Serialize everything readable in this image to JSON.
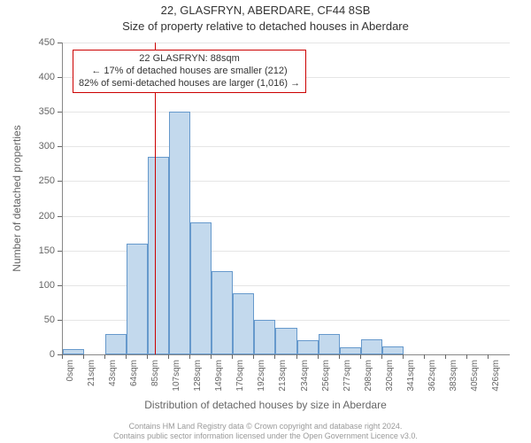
{
  "title": "22, GLASFRYN, ABERDARE, CF44 8SB",
  "subtitle": "Size of property relative to detached houses in Aberdare",
  "chart": {
    "type": "histogram",
    "ylabel": "Number of detached properties",
    "xlabel": "Distribution of detached houses by size in Aberdare",
    "ylim_max": 450,
    "ytick_step": 50,
    "grid_color": "#e5e5e5",
    "background_color": "#ffffff",
    "bar_fill": "#c3d9ed",
    "bar_border": "#6699cc",
    "x_tick_labels": [
      "0sqm",
      "21sqm",
      "43sqm",
      "64sqm",
      "85sqm",
      "107sqm",
      "128sqm",
      "149sqm",
      "170sqm",
      "192sqm",
      "213sqm",
      "234sqm",
      "256sqm",
      "277sqm",
      "298sqm",
      "320sqm",
      "341sqm",
      "362sqm",
      "383sqm",
      "405sqm",
      "426sqm"
    ],
    "values": [
      8,
      0,
      30,
      160,
      285,
      350,
      190,
      120,
      88,
      50,
      38,
      20,
      30,
      10,
      22,
      12,
      0,
      0,
      0,
      0,
      0
    ],
    "indicator": {
      "value_sqm": 88,
      "color": "#cc0000"
    },
    "callout": {
      "border_color": "#cc0000",
      "line1": "22 GLASFRYN: 88sqm",
      "line2": "← 17% of detached houses are smaller (212)",
      "line3": "82% of semi-detached houses are larger (1,016) →"
    }
  },
  "footer": {
    "line1": "Contains HM Land Registry data © Crown copyright and database right 2024.",
    "line2": "Contains public sector information licensed under the Open Government Licence v3.0."
  }
}
